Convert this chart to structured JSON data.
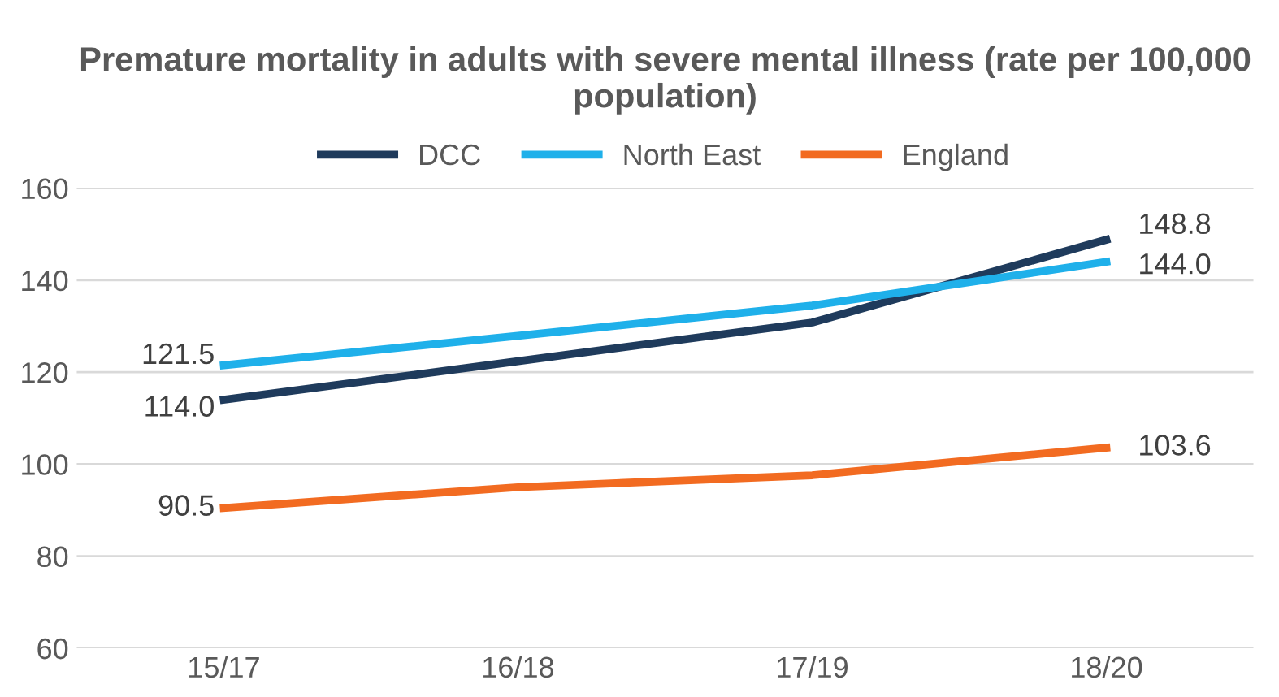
{
  "chart_data": {
    "type": "line",
    "title": "Premature mortality in adults with severe mental illness (rate per 100,000 population)",
    "categories": [
      "15/17",
      "16/18",
      "17/19",
      "18/20"
    ],
    "series": [
      {
        "name": "DCC",
        "color": "#1f3b5c",
        "values": [
          114.0,
          122.4,
          130.8,
          148.8
        ],
        "value_labels": [
          "114.0",
          null,
          null,
          "148.8"
        ]
      },
      {
        "name": "North East",
        "color": "#1fb0ea",
        "values": [
          121.5,
          127.9,
          134.5,
          144.0
        ],
        "value_labels": [
          "121.5",
          null,
          null,
          "144.0"
        ]
      },
      {
        "name": "England",
        "color": "#f26b21",
        "values": [
          90.5,
          95.0,
          97.6,
          103.6
        ],
        "value_labels": [
          "90.5",
          null,
          null,
          "103.6"
        ]
      }
    ],
    "ylim": [
      60,
      160
    ],
    "yticks": [
      60,
      80,
      100,
      120,
      140,
      160
    ],
    "grid": "y",
    "legend": "top",
    "marker": "none",
    "line_style": "solid"
  }
}
